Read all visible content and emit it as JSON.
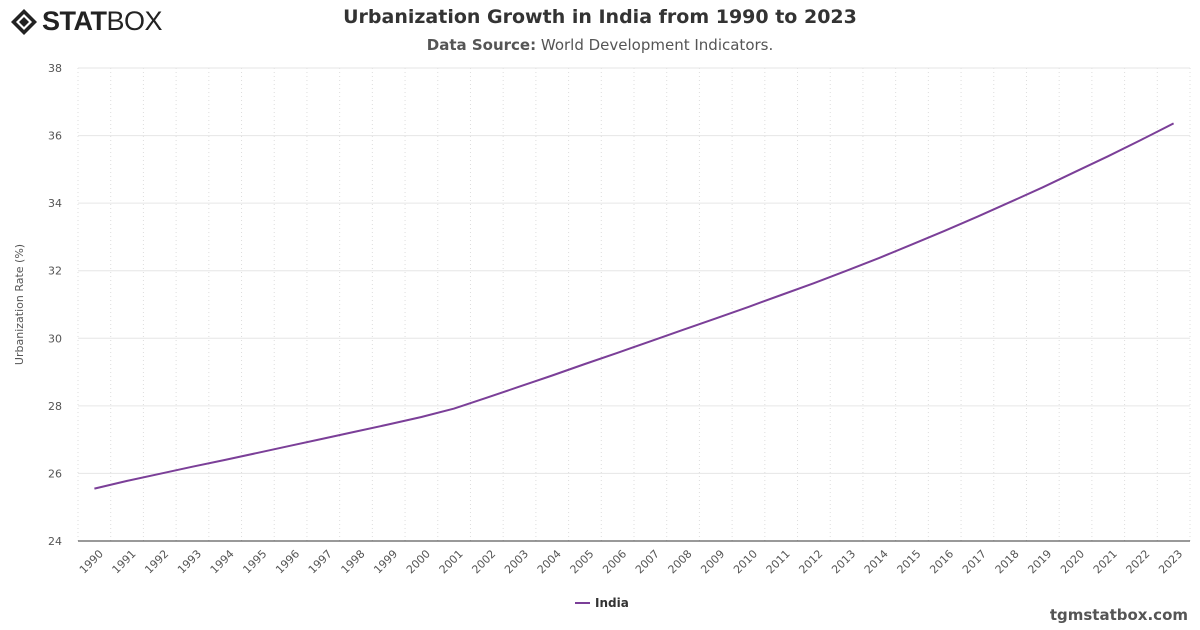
{
  "brand": {
    "logo_text_bold": "STAT",
    "logo_text_light": "BOX"
  },
  "header": {
    "title": "Urbanization Growth in India from 1990 to 2023",
    "subtitle_label": "Data Source:",
    "subtitle_value": "World Development Indicators."
  },
  "footer": {
    "site": "tgmstatbox.com"
  },
  "chart_data": {
    "type": "line",
    "title": "Urbanization Growth in India from 1990 to 2023",
    "xlabel": "",
    "ylabel": "Urbanization Rate (%)",
    "ylim": [
      24,
      38
    ],
    "yticks": [
      24,
      26,
      28,
      30,
      32,
      34,
      36,
      38
    ],
    "grid": true,
    "legend": "bottom-center",
    "color": "#7b3f98",
    "categories": [
      "1990",
      "1991",
      "1992",
      "1993",
      "1994",
      "1995",
      "1996",
      "1997",
      "1998",
      "1999",
      "2000",
      "2001",
      "2002",
      "2003",
      "2004",
      "2005",
      "2006",
      "2007",
      "2008",
      "2009",
      "2010",
      "2011",
      "2012",
      "2013",
      "2014",
      "2015",
      "2016",
      "2017",
      "2018",
      "2019",
      "2020",
      "2021",
      "2022",
      "2023"
    ],
    "series": [
      {
        "name": "India",
        "values": [
          25.55,
          25.78,
          25.99,
          26.2,
          26.4,
          26.61,
          26.82,
          27.03,
          27.24,
          27.45,
          27.67,
          27.92,
          28.24,
          28.57,
          28.9,
          29.24,
          29.57,
          29.91,
          30.25,
          30.59,
          30.93,
          31.28,
          31.63,
          32.0,
          32.38,
          32.78,
          33.18,
          33.6,
          34.03,
          34.47,
          34.93,
          35.39,
          35.87,
          36.36
        ]
      }
    ]
  }
}
